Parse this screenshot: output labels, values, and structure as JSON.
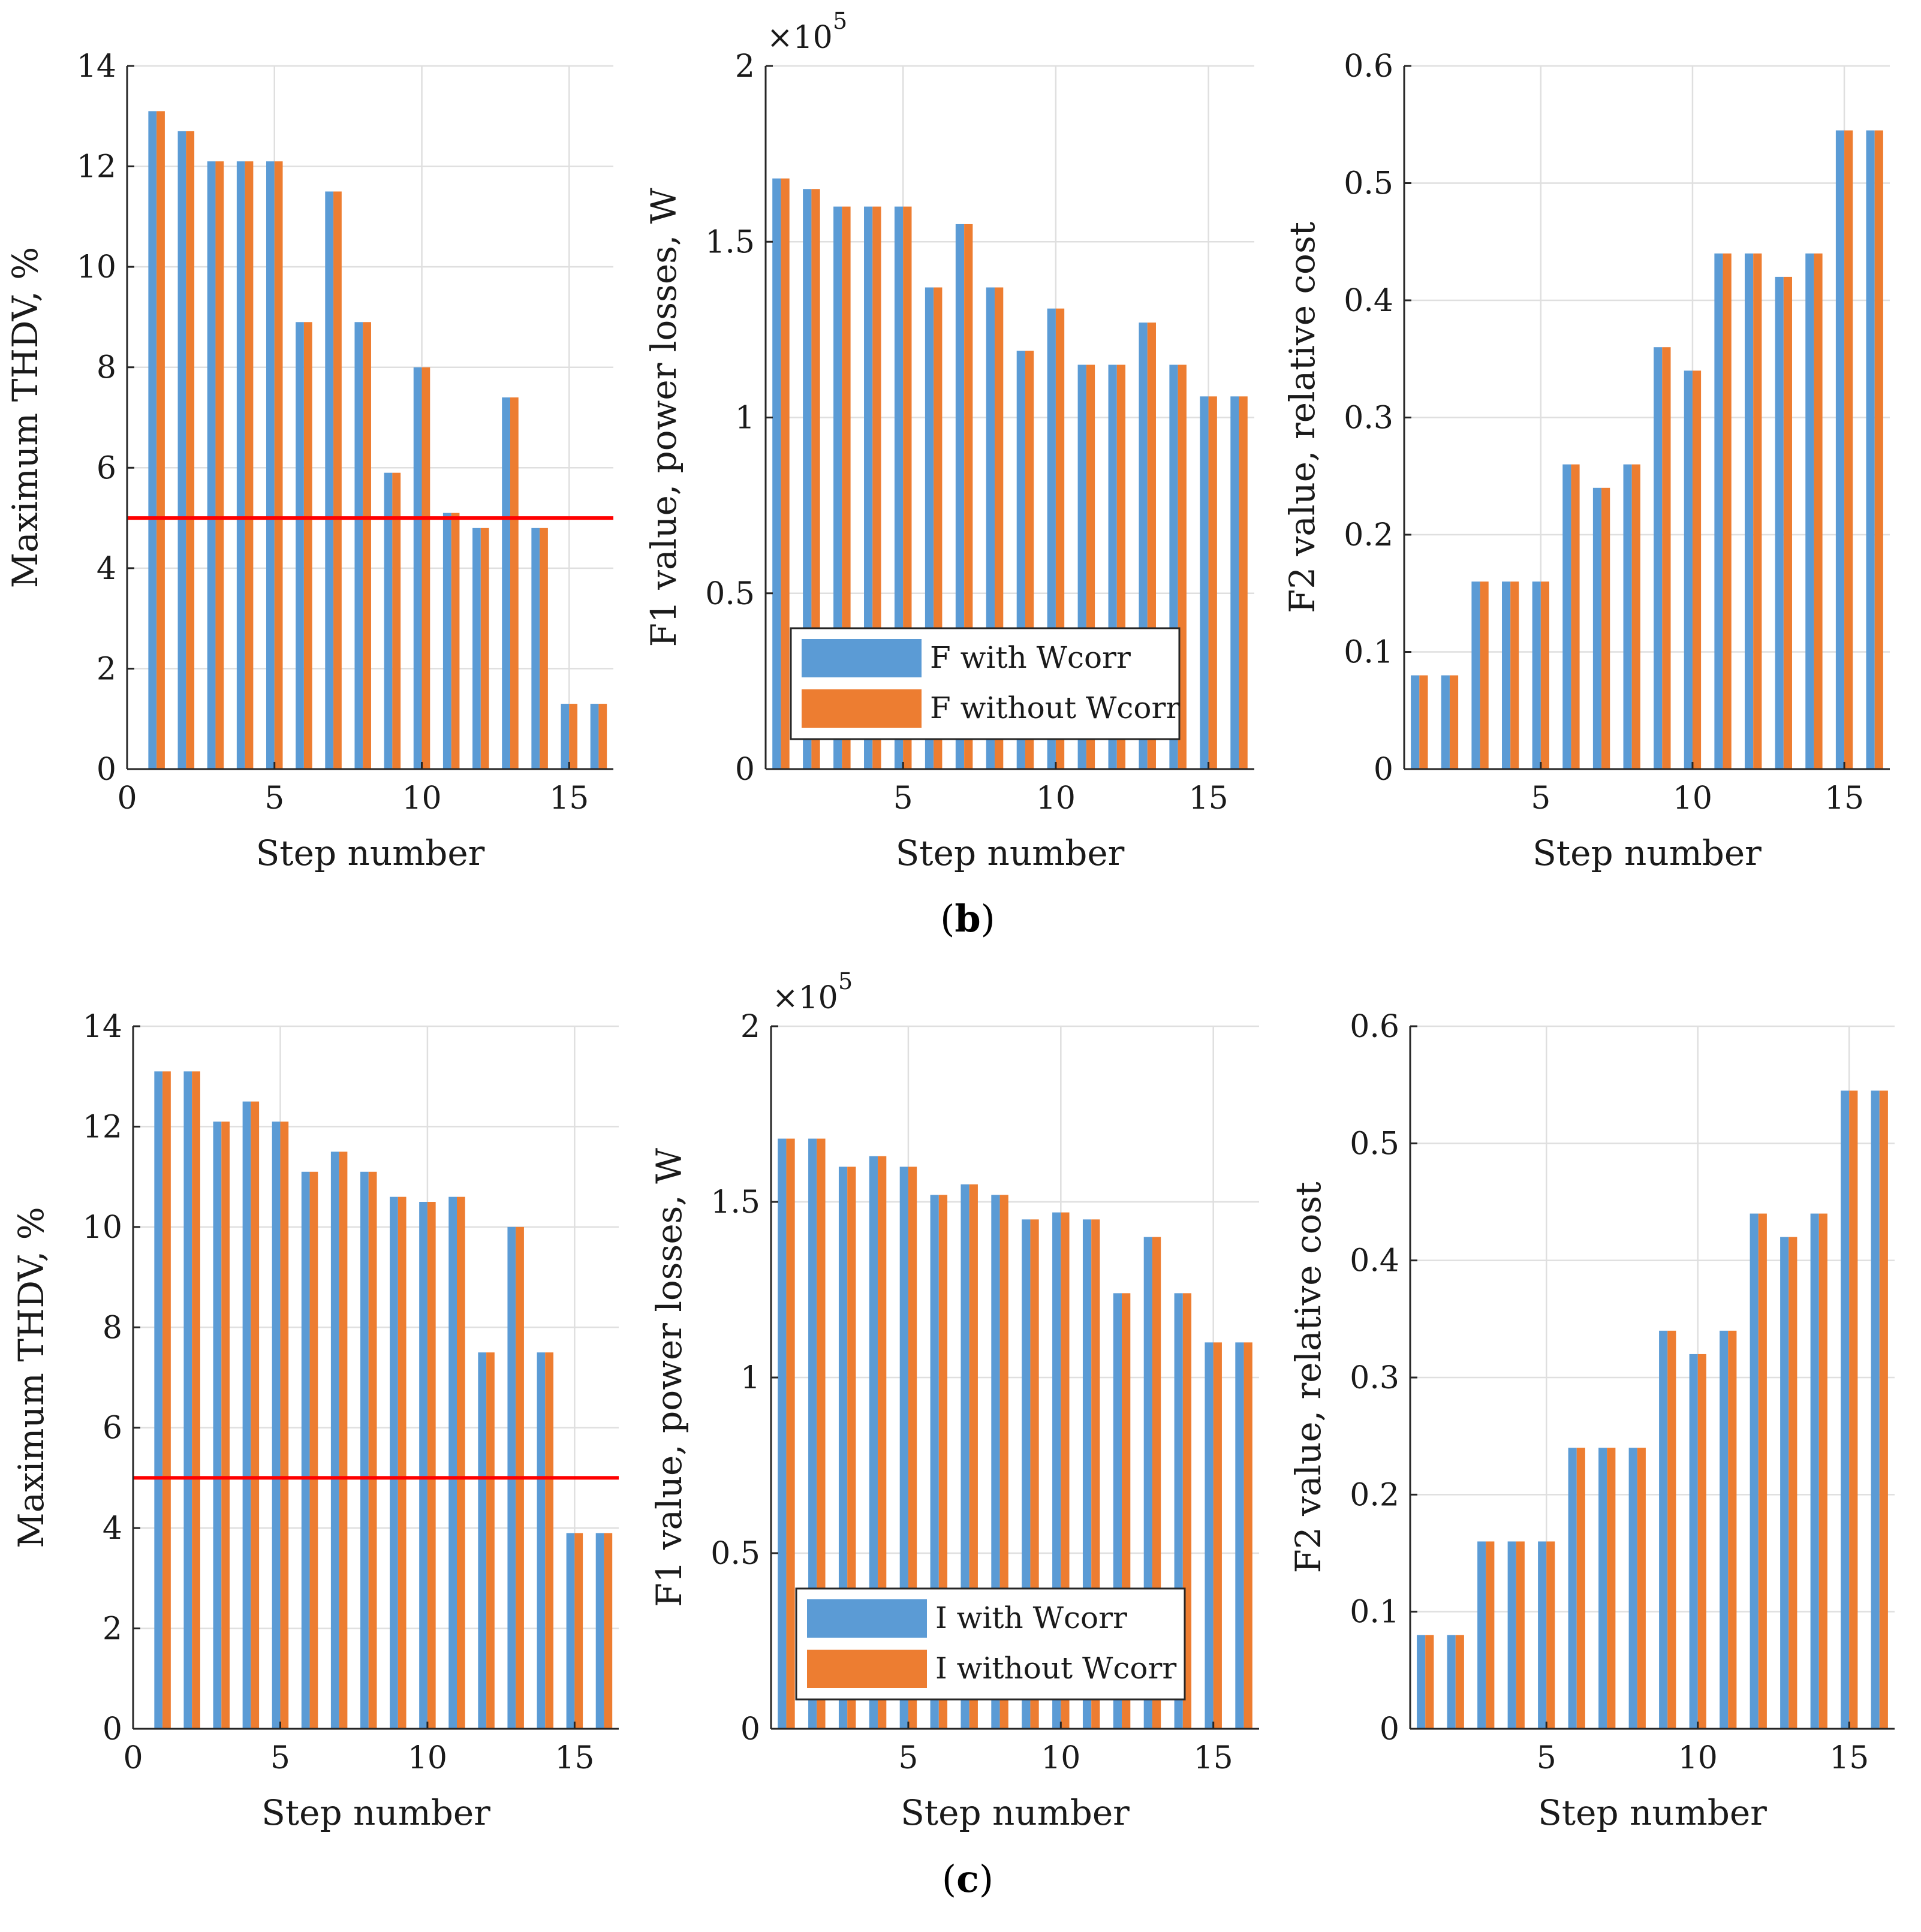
{
  "panels": [
    {
      "label_letter": "b",
      "charts": [
        {
          "type": "bar",
          "title": "",
          "xlabel": "Step number",
          "ylabel": "Maximum THDV, %",
          "xlim": [
            0,
            16.5
          ],
          "ylim": [
            0,
            14
          ],
          "xticks": [
            "0",
            "5",
            "10",
            "15"
          ],
          "xtick_values": [
            0,
            5,
            10,
            15
          ],
          "yticks": [
            "0",
            "2",
            "4",
            "6",
            "8",
            "10",
            "12",
            "14"
          ],
          "ytick_values": [
            0,
            2,
            4,
            6,
            8,
            10,
            12,
            14
          ],
          "threshold": 5,
          "categories": [
            1,
            2,
            3,
            4,
            5,
            6,
            7,
            8,
            9,
            10,
            11,
            12,
            13,
            14,
            15,
            16
          ],
          "series": [
            {
              "name": "with Wcorr",
              "color": "#5B9BD5",
              "values": [
                13.1,
                12.7,
                12.1,
                12.1,
                12.1,
                8.9,
                11.5,
                8.9,
                5.9,
                8.0,
                5.1,
                4.8,
                7.4,
                4.8,
                1.3,
                1.3
              ]
            },
            {
              "name": "without Wcorr",
              "color": "#ED7D31",
              "values": [
                13.1,
                12.7,
                12.1,
                12.1,
                12.1,
                8.9,
                11.5,
                8.9,
                5.9,
                8.0,
                5.1,
                4.8,
                7.4,
                4.8,
                1.3,
                1.3
              ]
            }
          ]
        },
        {
          "type": "bar",
          "title": "",
          "xlabel": "Step number",
          "ylabel": "F1 value, power losses, W",
          "multiplier": "×10",
          "multiplier_exp": "5",
          "xlim": [
            0.5,
            16.5
          ],
          "ylim": [
            0,
            2
          ],
          "xticks": [
            "5",
            "10",
            "15"
          ],
          "xtick_values": [
            5,
            10,
            15
          ],
          "yticks": [
            "0",
            "0.5",
            "1",
            "1.5",
            "2"
          ],
          "ytick_values": [
            0,
            0.5,
            1,
            1.5,
            2
          ],
          "legend": [
            "F with Wcorr",
            "F without Wcorr"
          ],
          "legend_position": "lower-left",
          "categories": [
            1,
            2,
            3,
            4,
            5,
            6,
            7,
            8,
            9,
            10,
            11,
            12,
            13,
            14,
            15,
            16
          ],
          "series": [
            {
              "name": "F with Wcorr",
              "color": "#5B9BD5",
              "values": [
                1.68,
                1.65,
                1.6,
                1.6,
                1.6,
                1.37,
                1.55,
                1.37,
                1.19,
                1.31,
                1.15,
                1.15,
                1.27,
                1.15,
                1.06,
                1.06
              ]
            },
            {
              "name": "F without Wcorr",
              "color": "#ED7D31",
              "values": [
                1.68,
                1.65,
                1.6,
                1.6,
                1.6,
                1.37,
                1.55,
                1.37,
                1.19,
                1.31,
                1.15,
                1.15,
                1.27,
                1.15,
                1.06,
                1.06
              ]
            }
          ]
        },
        {
          "type": "bar",
          "title": "",
          "xlabel": "Step number",
          "ylabel": "F2 value, relative cost",
          "xlim": [
            0.5,
            16.5
          ],
          "ylim": [
            0,
            0.6
          ],
          "xticks": [
            "5",
            "10",
            "15"
          ],
          "xtick_values": [
            5,
            10,
            15
          ],
          "yticks": [
            "0",
            "0.1",
            "0.2",
            "0.3",
            "0.4",
            "0.5",
            "0.6"
          ],
          "ytick_values": [
            0,
            0.1,
            0.2,
            0.3,
            0.4,
            0.5,
            0.6
          ],
          "categories": [
            1,
            2,
            3,
            4,
            5,
            6,
            7,
            8,
            9,
            10,
            11,
            12,
            13,
            14,
            15,
            16
          ],
          "series": [
            {
              "name": "with Wcorr",
              "color": "#5B9BD5",
              "values": [
                0.08,
                0.08,
                0.16,
                0.16,
                0.16,
                0.26,
                0.24,
                0.26,
                0.36,
                0.34,
                0.44,
                0.44,
                0.42,
                0.44,
                0.545,
                0.545
              ]
            },
            {
              "name": "without Wcorr",
              "color": "#ED7D31",
              "values": [
                0.08,
                0.08,
                0.16,
                0.16,
                0.16,
                0.26,
                0.24,
                0.26,
                0.36,
                0.34,
                0.44,
                0.44,
                0.42,
                0.44,
                0.545,
                0.545
              ]
            }
          ]
        }
      ]
    },
    {
      "label_letter": "c",
      "charts": [
        {
          "type": "bar",
          "title": "",
          "xlabel": "Step number",
          "ylabel": "Maximum THDV, %",
          "xlim": [
            0,
            16.5
          ],
          "ylim": [
            0,
            14
          ],
          "xticks": [
            "0",
            "5",
            "10",
            "15"
          ],
          "xtick_values": [
            0,
            5,
            10,
            15
          ],
          "yticks": [
            "0",
            "2",
            "4",
            "6",
            "8",
            "10",
            "12",
            "14"
          ],
          "ytick_values": [
            0,
            2,
            4,
            6,
            8,
            10,
            12,
            14
          ],
          "threshold": 5,
          "categories": [
            1,
            2,
            3,
            4,
            5,
            6,
            7,
            8,
            9,
            10,
            11,
            12,
            13,
            14,
            15,
            16
          ],
          "series": [
            {
              "name": "with Wcorr",
              "color": "#5B9BD5",
              "values": [
                13.1,
                13.1,
                12.1,
                12.5,
                12.1,
                11.1,
                11.5,
                11.1,
                10.6,
                10.5,
                10.6,
                7.5,
                10.0,
                7.5,
                3.9,
                3.9
              ]
            },
            {
              "name": "without Wcorr",
              "color": "#ED7D31",
              "values": [
                13.1,
                13.1,
                12.1,
                12.5,
                12.1,
                11.1,
                11.5,
                11.1,
                10.6,
                10.5,
                10.6,
                7.5,
                10.0,
                7.5,
                3.9,
                3.9
              ]
            }
          ]
        },
        {
          "type": "bar",
          "title": "",
          "xlabel": "Step number",
          "ylabel": "F1 value, power losses, W",
          "multiplier": "×10",
          "multiplier_exp": "5",
          "xlim": [
            0.5,
            16.5
          ],
          "ylim": [
            0,
            2
          ],
          "xticks": [
            "5",
            "10",
            "15"
          ],
          "xtick_values": [
            5,
            10,
            15
          ],
          "yticks": [
            "0",
            "0.5",
            "1",
            "1.5",
            "2"
          ],
          "ytick_values": [
            0,
            0.5,
            1,
            1.5,
            2
          ],
          "legend": [
            "I with Wcorr",
            "I without Wcorr"
          ],
          "legend_position": "lower-left",
          "categories": [
            1,
            2,
            3,
            4,
            5,
            6,
            7,
            8,
            9,
            10,
            11,
            12,
            13,
            14,
            15,
            16
          ],
          "series": [
            {
              "name": "I with Wcorr",
              "color": "#5B9BD5",
              "values": [
                1.68,
                1.68,
                1.6,
                1.63,
                1.6,
                1.52,
                1.55,
                1.52,
                1.45,
                1.47,
                1.45,
                1.24,
                1.4,
                1.24,
                1.1,
                1.1
              ]
            },
            {
              "name": "I without Wcorr",
              "color": "#ED7D31",
              "values": [
                1.68,
                1.68,
                1.6,
                1.63,
                1.6,
                1.52,
                1.55,
                1.52,
                1.45,
                1.47,
                1.45,
                1.24,
                1.4,
                1.24,
                1.1,
                1.1
              ]
            }
          ]
        },
        {
          "type": "bar",
          "title": "",
          "xlabel": "Step number",
          "ylabel": "F2 value, relative cost",
          "xlim": [
            0.5,
            16.5
          ],
          "ylim": [
            0,
            0.6
          ],
          "xticks": [
            "5",
            "10",
            "15"
          ],
          "xtick_values": [
            5,
            10,
            15
          ],
          "yticks": [
            "0",
            "0.1",
            "0.2",
            "0.3",
            "0.4",
            "0.5",
            "0.6"
          ],
          "ytick_values": [
            0,
            0.1,
            0.2,
            0.3,
            0.4,
            0.5,
            0.6
          ],
          "categories": [
            1,
            2,
            3,
            4,
            5,
            6,
            7,
            8,
            9,
            10,
            11,
            12,
            13,
            14,
            15,
            16
          ],
          "series": [
            {
              "name": "with Wcorr",
              "color": "#5B9BD5",
              "values": [
                0.08,
                0.08,
                0.16,
                0.16,
                0.16,
                0.24,
                0.24,
                0.24,
                0.34,
                0.32,
                0.34,
                0.44,
                0.42,
                0.44,
                0.545,
                0.545
              ]
            },
            {
              "name": "without Wcorr",
              "color": "#ED7D31",
              "values": [
                0.08,
                0.08,
                0.16,
                0.16,
                0.16,
                0.24,
                0.24,
                0.24,
                0.34,
                0.32,
                0.34,
                0.44,
                0.42,
                0.44,
                0.545,
                0.545
              ]
            }
          ]
        }
      ]
    }
  ],
  "colors": {
    "threshold": "#FF0000",
    "grid": "#DFDFDF",
    "axis": "#262626"
  }
}
